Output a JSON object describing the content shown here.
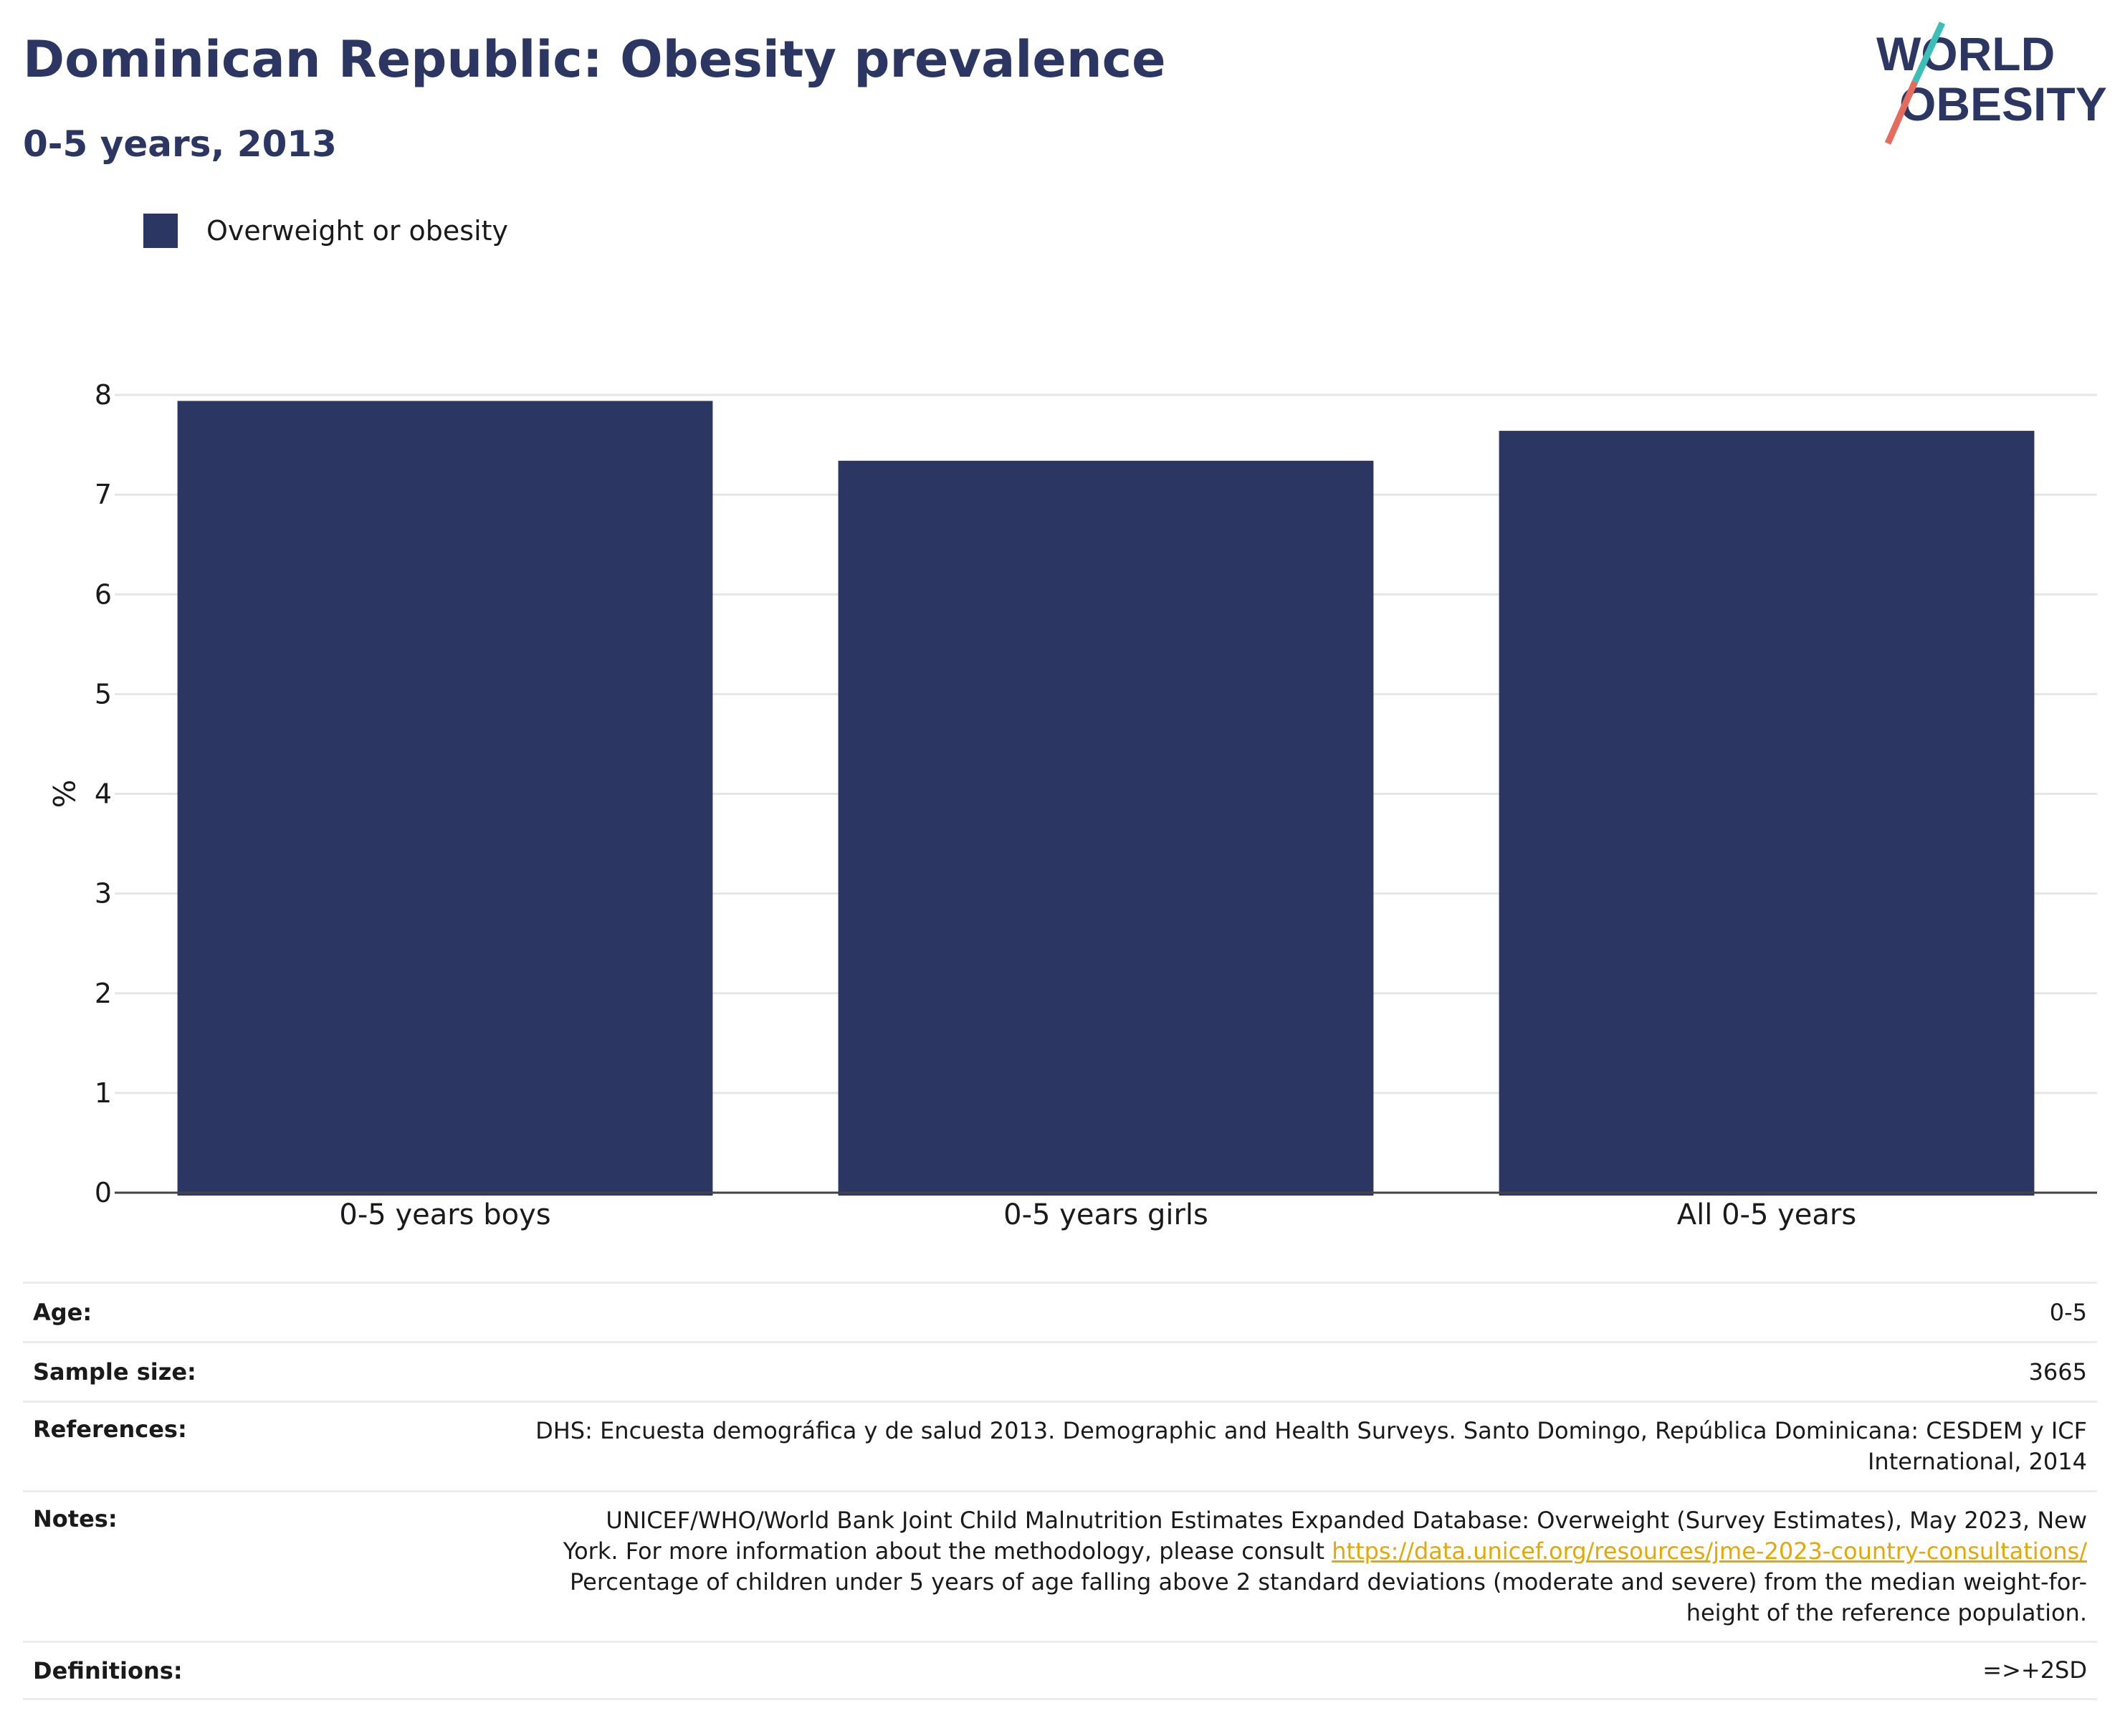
{
  "title": "Dominican Republic: Obesity prevalence",
  "subtitle": "0-5 years, 2013",
  "logo": {
    "line1": "WORLD",
    "line2": "OBESITY",
    "colors": {
      "navy": "#2b3662",
      "teal": "#3bbfb6",
      "coral": "#e56b5d"
    }
  },
  "legend": {
    "label": "Overweight or obesity",
    "color": "#2b3662"
  },
  "chart_data": {
    "type": "bar",
    "categories": [
      "0-5 years boys",
      "0-5 years girls",
      "All 0-5 years"
    ],
    "series": [
      {
        "name": "Overweight or obesity",
        "values": [
          7.94,
          7.34,
          7.64
        ],
        "color": "#2b3662"
      }
    ],
    "xlabel": "",
    "ylabel": "%",
    "ylim": [
      0,
      8
    ],
    "yticks": [
      0,
      1,
      2,
      3,
      4,
      5,
      6,
      7,
      8
    ],
    "grid": true,
    "legend_position": "top-left"
  },
  "info": {
    "age": {
      "label": "Age:",
      "value": "0-5"
    },
    "sample_size": {
      "label": "Sample size:",
      "value": "3665"
    },
    "references": {
      "label": "References:",
      "line1": "DHS: Encuesta demográfica y de salud 2013. Demographic and Health Surveys. Santo Domingo, República Dominicana: CESDEM y ICF",
      "line2": "International, 2014"
    },
    "notes": {
      "label": "Notes:",
      "line1": "UNICEF/WHO/World Bank Joint Child Malnutrition Estimates Expanded Database: Overweight (Survey Estimates), May 2023, New",
      "line2_text": "York. For more information about the methodology, please consult ",
      "link": "https://data.unicef.org/resources/jme-2023-country-consultations/",
      "line3": "Percentage of children under 5 years of age falling above 2 standard deviations (moderate and severe) from the median weight-for-",
      "line4": "height of the reference population."
    },
    "definitions": {
      "label": "Definitions:",
      "value": "=>+2SD"
    }
  }
}
